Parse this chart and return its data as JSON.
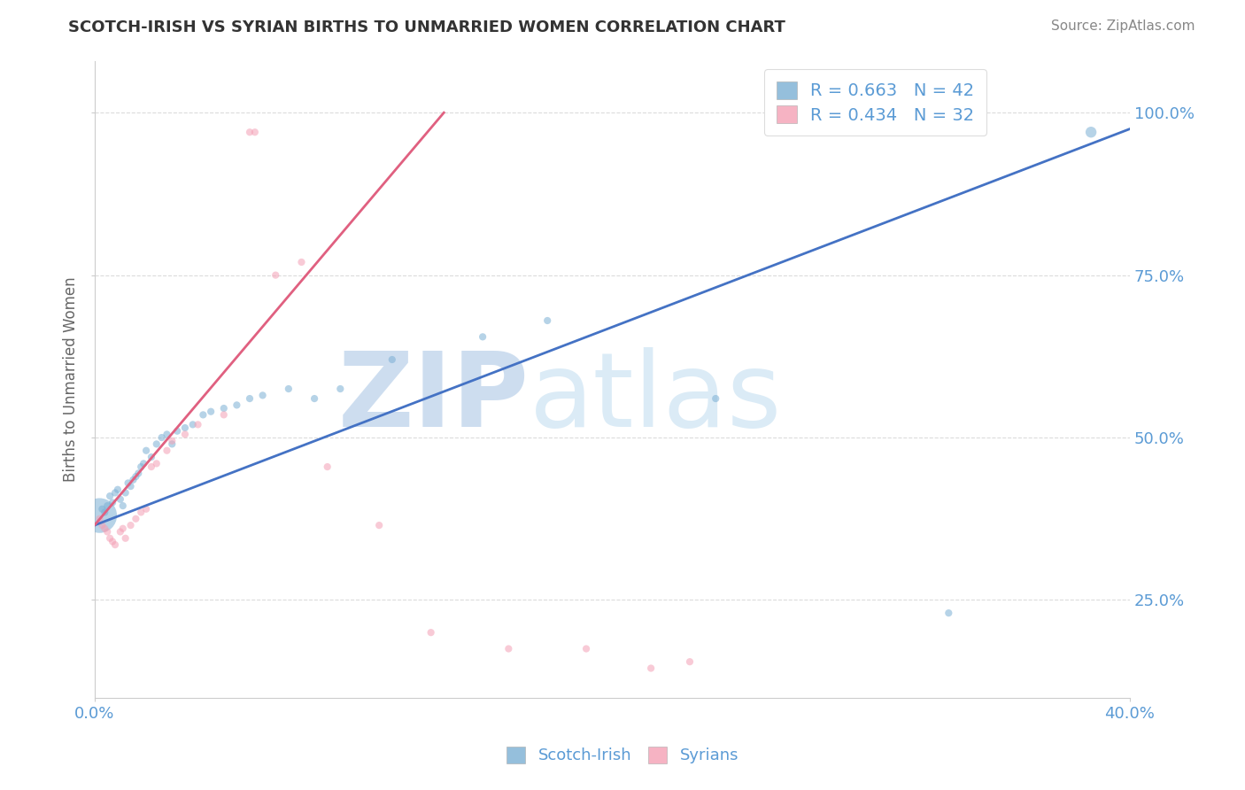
{
  "title": "SCOTCH-IRISH VS SYRIAN BIRTHS TO UNMARRIED WOMEN CORRELATION CHART",
  "source": "Source: ZipAtlas.com",
  "ylabel_label": "Births to Unmarried Women",
  "legend_blue": "R = 0.663   N = 42",
  "legend_pink": "R = 0.434   N = 32",
  "watermark": "ZIPatlas",
  "scotch_irish_scatter": [
    [
      0.002,
      0.38
    ],
    [
      0.003,
      0.39
    ],
    [
      0.004,
      0.385
    ],
    [
      0.005,
      0.395
    ],
    [
      0.006,
      0.41
    ],
    [
      0.007,
      0.4
    ],
    [
      0.008,
      0.415
    ],
    [
      0.009,
      0.42
    ],
    [
      0.01,
      0.405
    ],
    [
      0.011,
      0.395
    ],
    [
      0.012,
      0.415
    ],
    [
      0.013,
      0.43
    ],
    [
      0.014,
      0.425
    ],
    [
      0.015,
      0.435
    ],
    [
      0.016,
      0.44
    ],
    [
      0.017,
      0.445
    ],
    [
      0.018,
      0.455
    ],
    [
      0.019,
      0.46
    ],
    [
      0.02,
      0.48
    ],
    [
      0.022,
      0.47
    ],
    [
      0.024,
      0.49
    ],
    [
      0.026,
      0.5
    ],
    [
      0.028,
      0.505
    ],
    [
      0.03,
      0.49
    ],
    [
      0.032,
      0.51
    ],
    [
      0.035,
      0.515
    ],
    [
      0.038,
      0.52
    ],
    [
      0.042,
      0.535
    ],
    [
      0.045,
      0.54
    ],
    [
      0.05,
      0.545
    ],
    [
      0.055,
      0.55
    ],
    [
      0.06,
      0.56
    ],
    [
      0.065,
      0.565
    ],
    [
      0.075,
      0.575
    ],
    [
      0.085,
      0.56
    ],
    [
      0.095,
      0.575
    ],
    [
      0.115,
      0.62
    ],
    [
      0.15,
      0.655
    ],
    [
      0.175,
      0.68
    ],
    [
      0.24,
      0.56
    ],
    [
      0.33,
      0.23
    ],
    [
      0.385,
      0.97
    ]
  ],
  "scotch_irish_sizes": [
    800,
    35,
    35,
    35,
    35,
    35,
    35,
    35,
    35,
    35,
    35,
    35,
    35,
    35,
    35,
    35,
    35,
    35,
    35,
    35,
    35,
    35,
    35,
    35,
    35,
    35,
    35,
    35,
    35,
    35,
    35,
    35,
    35,
    35,
    35,
    35,
    35,
    35,
    35,
    35,
    35,
    80
  ],
  "syrian_scatter": [
    [
      0.002,
      0.375
    ],
    [
      0.003,
      0.365
    ],
    [
      0.004,
      0.36
    ],
    [
      0.005,
      0.355
    ],
    [
      0.006,
      0.345
    ],
    [
      0.007,
      0.34
    ],
    [
      0.008,
      0.335
    ],
    [
      0.01,
      0.355
    ],
    [
      0.011,
      0.36
    ],
    [
      0.012,
      0.345
    ],
    [
      0.014,
      0.365
    ],
    [
      0.016,
      0.375
    ],
    [
      0.018,
      0.385
    ],
    [
      0.02,
      0.39
    ],
    [
      0.022,
      0.455
    ],
    [
      0.024,
      0.46
    ],
    [
      0.028,
      0.48
    ],
    [
      0.03,
      0.495
    ],
    [
      0.035,
      0.505
    ],
    [
      0.04,
      0.52
    ],
    [
      0.05,
      0.535
    ],
    [
      0.06,
      0.97
    ],
    [
      0.062,
      0.97
    ],
    [
      0.07,
      0.75
    ],
    [
      0.08,
      0.77
    ],
    [
      0.09,
      0.455
    ],
    [
      0.11,
      0.365
    ],
    [
      0.13,
      0.2
    ],
    [
      0.16,
      0.175
    ],
    [
      0.19,
      0.175
    ],
    [
      0.215,
      0.145
    ],
    [
      0.23,
      0.155
    ]
  ],
  "syrian_sizes": [
    35,
    35,
    35,
    35,
    35,
    35,
    35,
    35,
    35,
    35,
    35,
    35,
    35,
    35,
    35,
    35,
    35,
    35,
    35,
    35,
    35,
    35,
    35,
    35,
    35,
    35,
    35,
    35,
    35,
    35,
    35,
    35
  ],
  "blue_color": "#7BAFD4",
  "pink_color": "#F4A0B5",
  "blue_line_color": "#4472C4",
  "pink_line_color": "#E06080",
  "background_color": "#FFFFFF",
  "grid_color": "#CCCCCC",
  "title_color": "#333333",
  "axis_color": "#5B9BD5",
  "watermark_color": "#D5E8F5",
  "xlim": [
    0.0,
    0.4
  ],
  "ylim": [
    0.1,
    1.08
  ],
  "yticks": [
    0.25,
    0.5,
    0.75,
    1.0
  ],
  "ytick_labels": [
    "25.0%",
    "50.0%",
    "75.0%",
    "100.0%"
  ]
}
